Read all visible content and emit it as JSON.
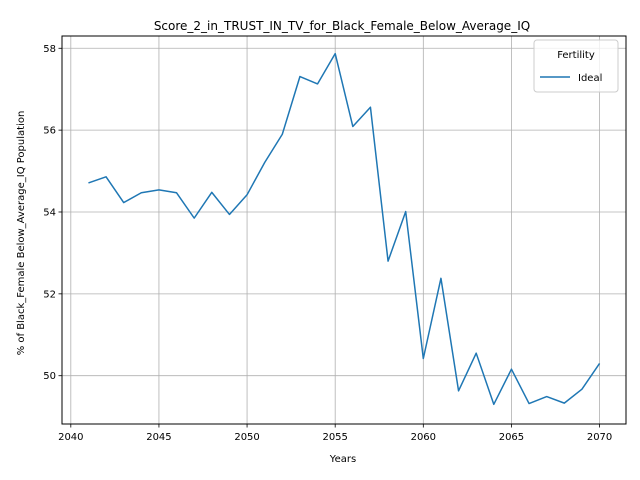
{
  "chart_data": {
    "type": "line",
    "title": "Score_2_in_TRUST_IN_TV_for_Black_Female_Below_Average_IQ",
    "xlabel": "Years",
    "ylabel": "% of Black_Female Below_Average_IQ Population",
    "xlim": [
      2039.5,
      2071.5
    ],
    "ylim": [
      48.82,
      58.3
    ],
    "xticks": [
      2040,
      2045,
      2050,
      2055,
      2060,
      2065,
      2070
    ],
    "yticks": [
      50,
      52,
      54,
      56,
      58
    ],
    "grid": true,
    "legend": {
      "title": "Fertility",
      "position": "top-right"
    },
    "series": [
      {
        "name": "Ideal",
        "color": "#1f77b4",
        "x": [
          2041,
          2042,
          2043,
          2044,
          2045,
          2046,
          2047,
          2048,
          2049,
          2050,
          2051,
          2052,
          2053,
          2054,
          2055,
          2056,
          2057,
          2058,
          2059,
          2060,
          2061,
          2062,
          2063,
          2064,
          2065,
          2066,
          2067,
          2068,
          2069,
          2070
        ],
        "y": [
          54.71,
          54.86,
          54.23,
          54.47,
          54.54,
          54.47,
          53.85,
          54.48,
          53.94,
          54.42,
          55.21,
          55.9,
          57.31,
          57.13,
          57.87,
          56.09,
          56.56,
          52.8,
          54.01,
          50.42,
          52.38,
          49.63,
          50.55,
          49.3,
          50.16,
          49.32,
          49.49,
          49.33,
          49.67,
          50.3
        ]
      }
    ]
  }
}
